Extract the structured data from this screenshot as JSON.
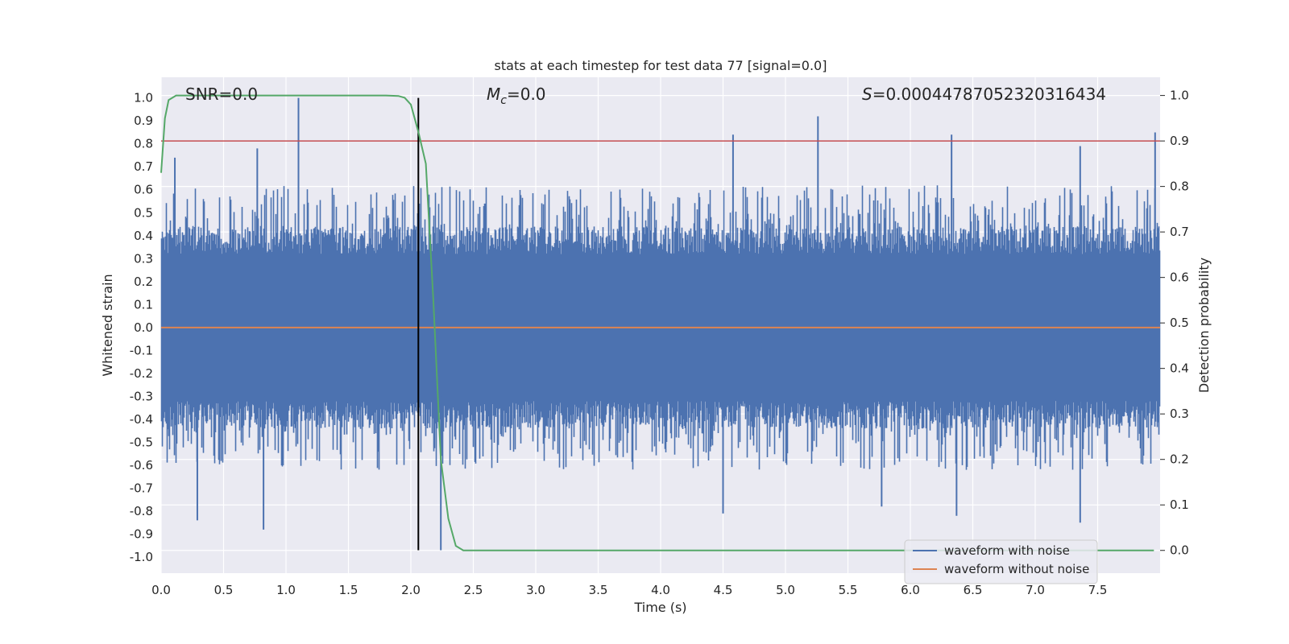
{
  "chart_data": {
    "type": "line",
    "title": "stats at each timestep for test data 77 [signal=0.0]",
    "xlabel": "Time (s)",
    "ylabel_left": "Whitened strain",
    "ylabel_right": "Detection probability",
    "xlim": [
      0.0,
      8.0
    ],
    "ylim_left": [
      -1.07,
      1.09
    ],
    "ylim_right": [
      -0.05,
      1.04
    ],
    "x_ticks": [
      "0.0",
      "0.5",
      "1.0",
      "1.5",
      "2.0",
      "2.5",
      "3.0",
      "3.5",
      "4.0",
      "4.5",
      "5.0",
      "5.5",
      "6.0",
      "6.5",
      "7.0",
      "7.5"
    ],
    "y_ticks_left": [
      "1.0",
      "0.9",
      "0.8",
      "0.7",
      "0.6",
      "0.5",
      "0.4",
      "0.3",
      "0.2",
      "0.1",
      "0.0",
      "-0.1",
      "-0.2",
      "-0.3",
      "-0.4",
      "-0.5",
      "-0.6",
      "-0.7",
      "-0.8",
      "-0.9",
      "-1.0"
    ],
    "y_ticks_right": [
      "1.0",
      "0.9",
      "0.8",
      "0.7",
      "0.6",
      "0.5",
      "0.4",
      "0.3",
      "0.2",
      "0.1",
      "0.0"
    ],
    "grid": true,
    "annotations": {
      "snr": "SNR=0.0",
      "mc_symbol": "M",
      "mc_sub": "c",
      "mc_value": "=0.0",
      "s_symbol": "S",
      "s_value": "=0.00044787052320316434"
    },
    "threshold_line": {
      "y_right": 0.9,
      "color": "#c44e52"
    },
    "vertical_marker": {
      "x": 2.06,
      "y_left_range": [
        -0.97,
        1.0
      ],
      "color": "#000000"
    },
    "series": [
      {
        "name": "waveform with noise",
        "axis": "left",
        "color": "#4c72b0",
        "envelope": "dense noise spanning roughly -0.4 to 0.4 with spikes reaching about ±0.6",
        "spikes": [
          {
            "x": 1.1,
            "y": 1.0
          },
          {
            "x": 5.26,
            "y": 0.92
          },
          {
            "x": 4.58,
            "y": 0.84
          },
          {
            "x": 6.33,
            "y": 0.84
          },
          {
            "x": 7.96,
            "y": 0.85
          },
          {
            "x": 0.77,
            "y": 0.78
          },
          {
            "x": 7.36,
            "y": 0.79
          },
          {
            "x": 0.11,
            "y": 0.74
          },
          {
            "x": 0.82,
            "y": -0.88
          },
          {
            "x": 0.29,
            "y": -0.84
          },
          {
            "x": 5.77,
            "y": -0.78
          },
          {
            "x": 4.5,
            "y": -0.81
          },
          {
            "x": 6.37,
            "y": -0.82
          },
          {
            "x": 7.36,
            "y": -0.85
          },
          {
            "x": 2.24,
            "y": -0.97
          }
        ]
      },
      {
        "name": "waveform without noise",
        "axis": "left",
        "color": "#dd8452",
        "x": [
          0.0,
          8.0
        ],
        "y": [
          0.0,
          0.0
        ]
      },
      {
        "name": "detection probability",
        "axis": "right",
        "color": "#55a868",
        "x": [
          0.0,
          0.03,
          0.06,
          0.12,
          0.2,
          0.5,
          1.0,
          1.5,
          1.8,
          1.9,
          1.95,
          2.0,
          2.06,
          2.12,
          2.18,
          2.24,
          2.3,
          2.36,
          2.42,
          2.48,
          3.0,
          4.0,
          5.0,
          6.0,
          7.0,
          7.95
        ],
        "y": [
          0.83,
          0.95,
          0.99,
          1.0,
          1.0,
          1.0,
          1.0,
          1.0,
          1.0,
          0.999,
          0.995,
          0.98,
          0.92,
          0.85,
          0.55,
          0.2,
          0.07,
          0.01,
          0.0,
          0.0,
          0.0,
          0.0,
          0.0,
          0.0,
          0.0,
          0.0
        ]
      }
    ],
    "legend": {
      "position": "lower-right",
      "entries": [
        "waveform with noise",
        "waveform without noise"
      ]
    }
  },
  "colors": {
    "axes_bg": "#eaeaf2",
    "grid": "#ffffff",
    "noise": "#4c72b0",
    "clean": "#dd8452",
    "prob": "#55a868",
    "threshold": "#c44e52"
  }
}
